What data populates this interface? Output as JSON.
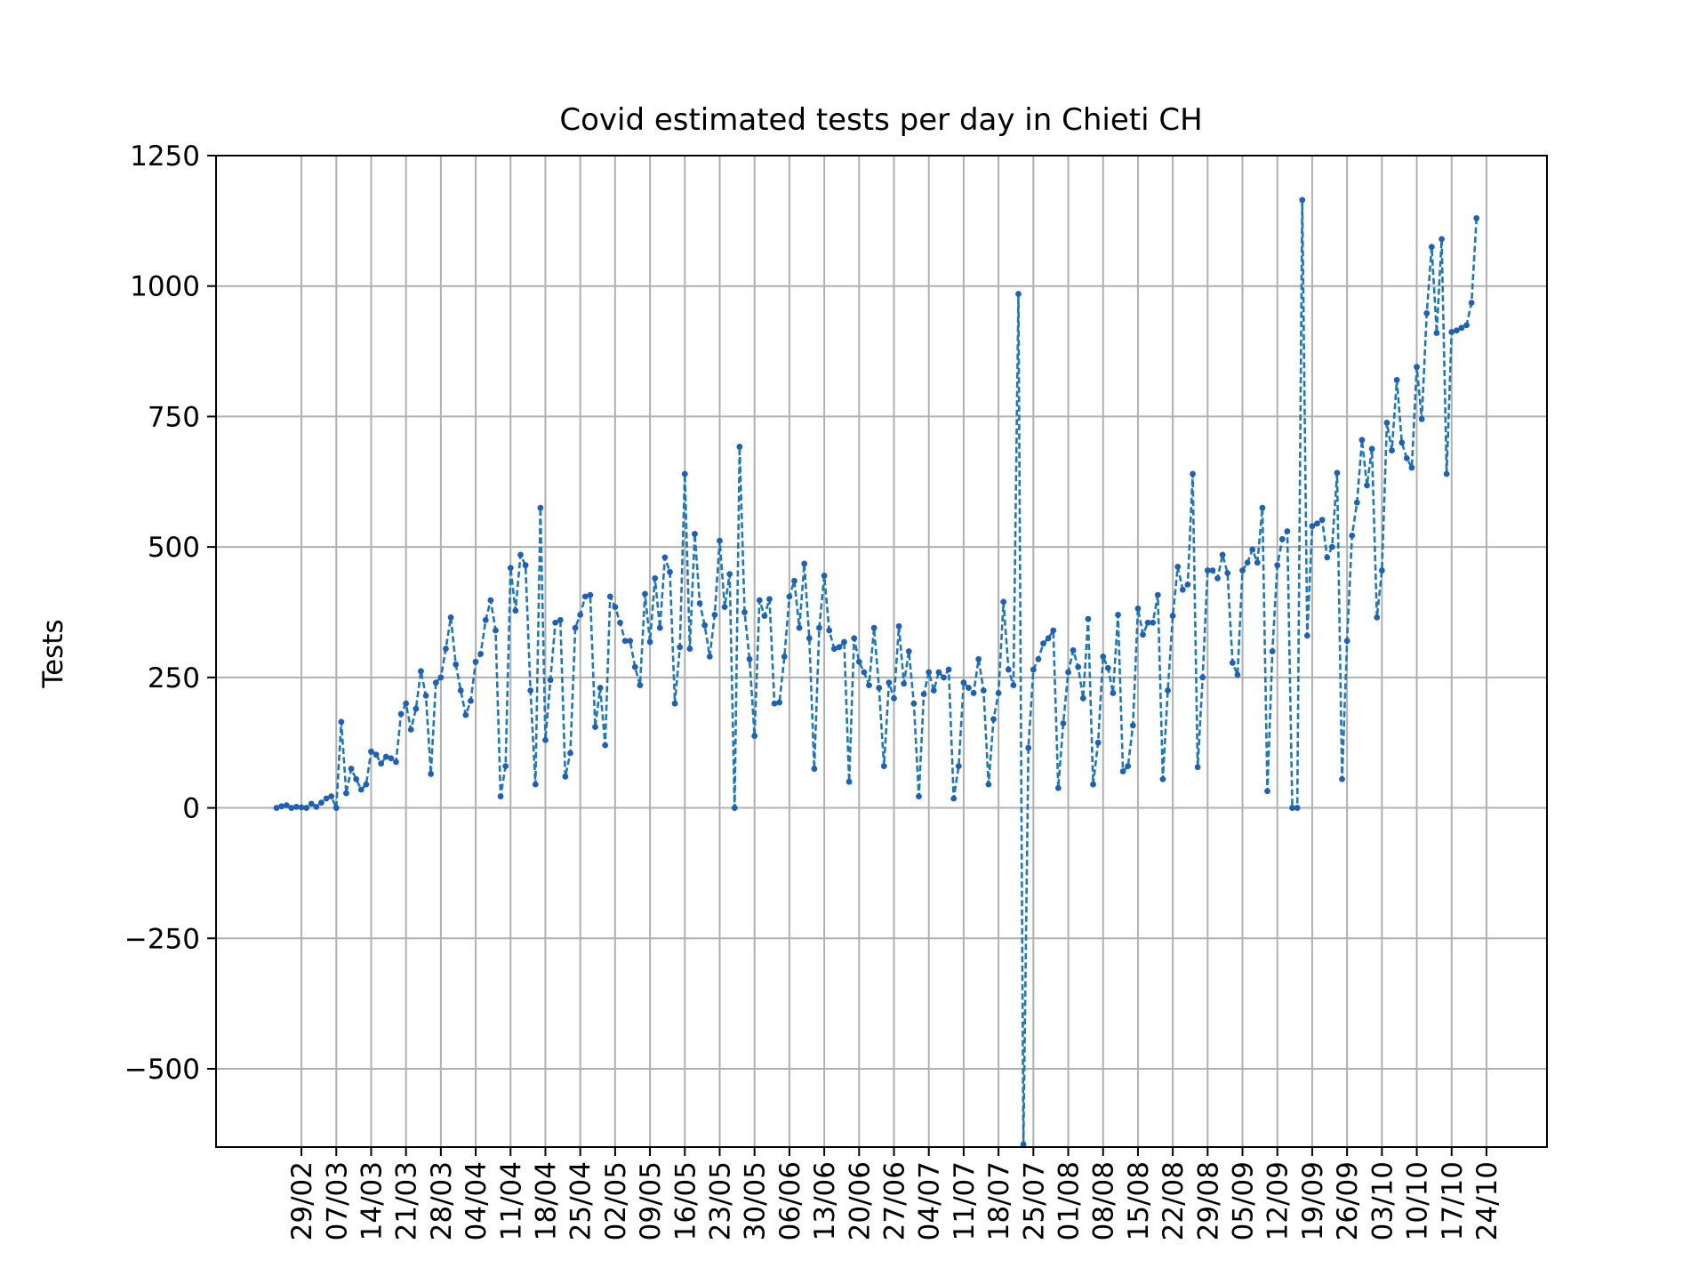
{
  "chart_data": {
    "type": "line",
    "title": "Covid estimated tests per day in Chieti CH",
    "xlabel": "",
    "ylabel": "Tests",
    "ylim": [
      -650,
      1250
    ],
    "yticks": [
      -500,
      -250,
      0,
      250,
      500,
      750,
      1000,
      1250
    ],
    "ytick_labels": [
      "−500",
      "−250",
      "0",
      "250",
      "500",
      "750",
      "1000",
      "1250"
    ],
    "x_start": "2020-02-24",
    "x_end": "2020-10-24",
    "xticks": [
      "2020-02-29",
      "2020-03-07",
      "2020-03-14",
      "2020-03-21",
      "2020-03-28",
      "2020-04-04",
      "2020-04-11",
      "2020-04-18",
      "2020-04-25",
      "2020-05-02",
      "2020-05-09",
      "2020-05-16",
      "2020-05-23",
      "2020-05-30",
      "2020-06-06",
      "2020-06-13",
      "2020-06-20",
      "2020-06-27",
      "2020-07-04",
      "2020-07-11",
      "2020-07-18",
      "2020-07-25",
      "2020-08-01",
      "2020-08-08",
      "2020-08-15",
      "2020-08-22",
      "2020-08-29",
      "2020-09-05",
      "2020-09-12",
      "2020-09-19",
      "2020-09-26",
      "2020-10-03",
      "2020-10-10",
      "2020-10-17",
      "2020-10-24"
    ],
    "xtick_labels": [
      "29/02",
      "07/03",
      "14/03",
      "21/03",
      "28/03",
      "04/04",
      "11/04",
      "18/04",
      "25/04",
      "02/05",
      "09/05",
      "16/05",
      "23/05",
      "30/05",
      "06/06",
      "13/06",
      "20/06",
      "27/06",
      "04/07",
      "11/07",
      "18/07",
      "25/07",
      "01/08",
      "08/08",
      "15/08",
      "22/08",
      "29/08",
      "05/09",
      "12/09",
      "19/09",
      "26/09",
      "03/10",
      "10/10",
      "17/10",
      "24/10"
    ],
    "grid": true,
    "series": [
      {
        "name": "",
        "color": "#1f77b4",
        "marker_color": "#1f5fb4",
        "line_style": "dashed",
        "values": [
          0,
          3,
          5,
          0,
          2,
          1,
          0,
          8,
          2,
          10,
          18,
          22,
          0,
          165,
          28,
          75,
          55,
          35,
          45,
          108,
          102,
          85,
          98,
          95,
          88,
          180,
          200,
          150,
          190,
          262,
          215,
          65,
          240,
          250,
          305,
          365,
          275,
          225,
          178,
          205,
          280,
          295,
          360,
          398,
          340,
          22,
          80,
          460,
          378,
          485,
          465,
          225,
          45,
          575,
          130,
          245,
          355,
          360,
          60,
          105,
          345,
          370,
          405,
          408,
          155,
          230,
          120,
          405,
          385,
          355,
          320,
          320,
          270,
          235,
          410,
          318,
          440,
          345,
          480,
          452,
          200,
          308,
          640,
          305,
          525,
          392,
          350,
          290,
          370,
          512,
          385,
          448,
          0,
          692,
          375,
          285,
          138,
          398,
          368,
          400,
          200,
          202,
          290,
          405,
          435,
          345,
          468,
          325,
          75,
          345,
          445,
          340,
          305,
          308,
          318,
          50,
          325,
          280,
          260,
          235,
          345,
          230,
          80,
          240,
          210,
          348,
          238,
          300,
          200,
          22,
          218,
          260,
          225,
          260,
          250,
          265,
          18,
          80,
          240,
          230,
          220,
          285,
          225,
          45,
          170,
          220,
          395,
          265,
          235,
          985,
          -645,
          115,
          265,
          285,
          315,
          325,
          340,
          38,
          162,
          260,
          302,
          270,
          210,
          362,
          45,
          125,
          290,
          268,
          220,
          370,
          70,
          80,
          158,
          382,
          332,
          355,
          355,
          408,
          55,
          225,
          368,
          462,
          418,
          428,
          640,
          78,
          250,
          455,
          455,
          440,
          485,
          450,
          278,
          255,
          455,
          470,
          495,
          470,
          575,
          32,
          300,
          465,
          515,
          530,
          0,
          0,
          1165,
          330,
          540,
          545,
          552,
          480,
          500,
          642,
          55,
          320,
          522,
          585,
          705,
          618,
          688,
          365,
          455,
          738,
          685,
          820,
          700,
          670,
          652,
          845,
          745,
          948,
          1075,
          910,
          1090,
          640,
          912,
          915,
          920,
          925,
          968,
          1130
        ]
      }
    ]
  }
}
